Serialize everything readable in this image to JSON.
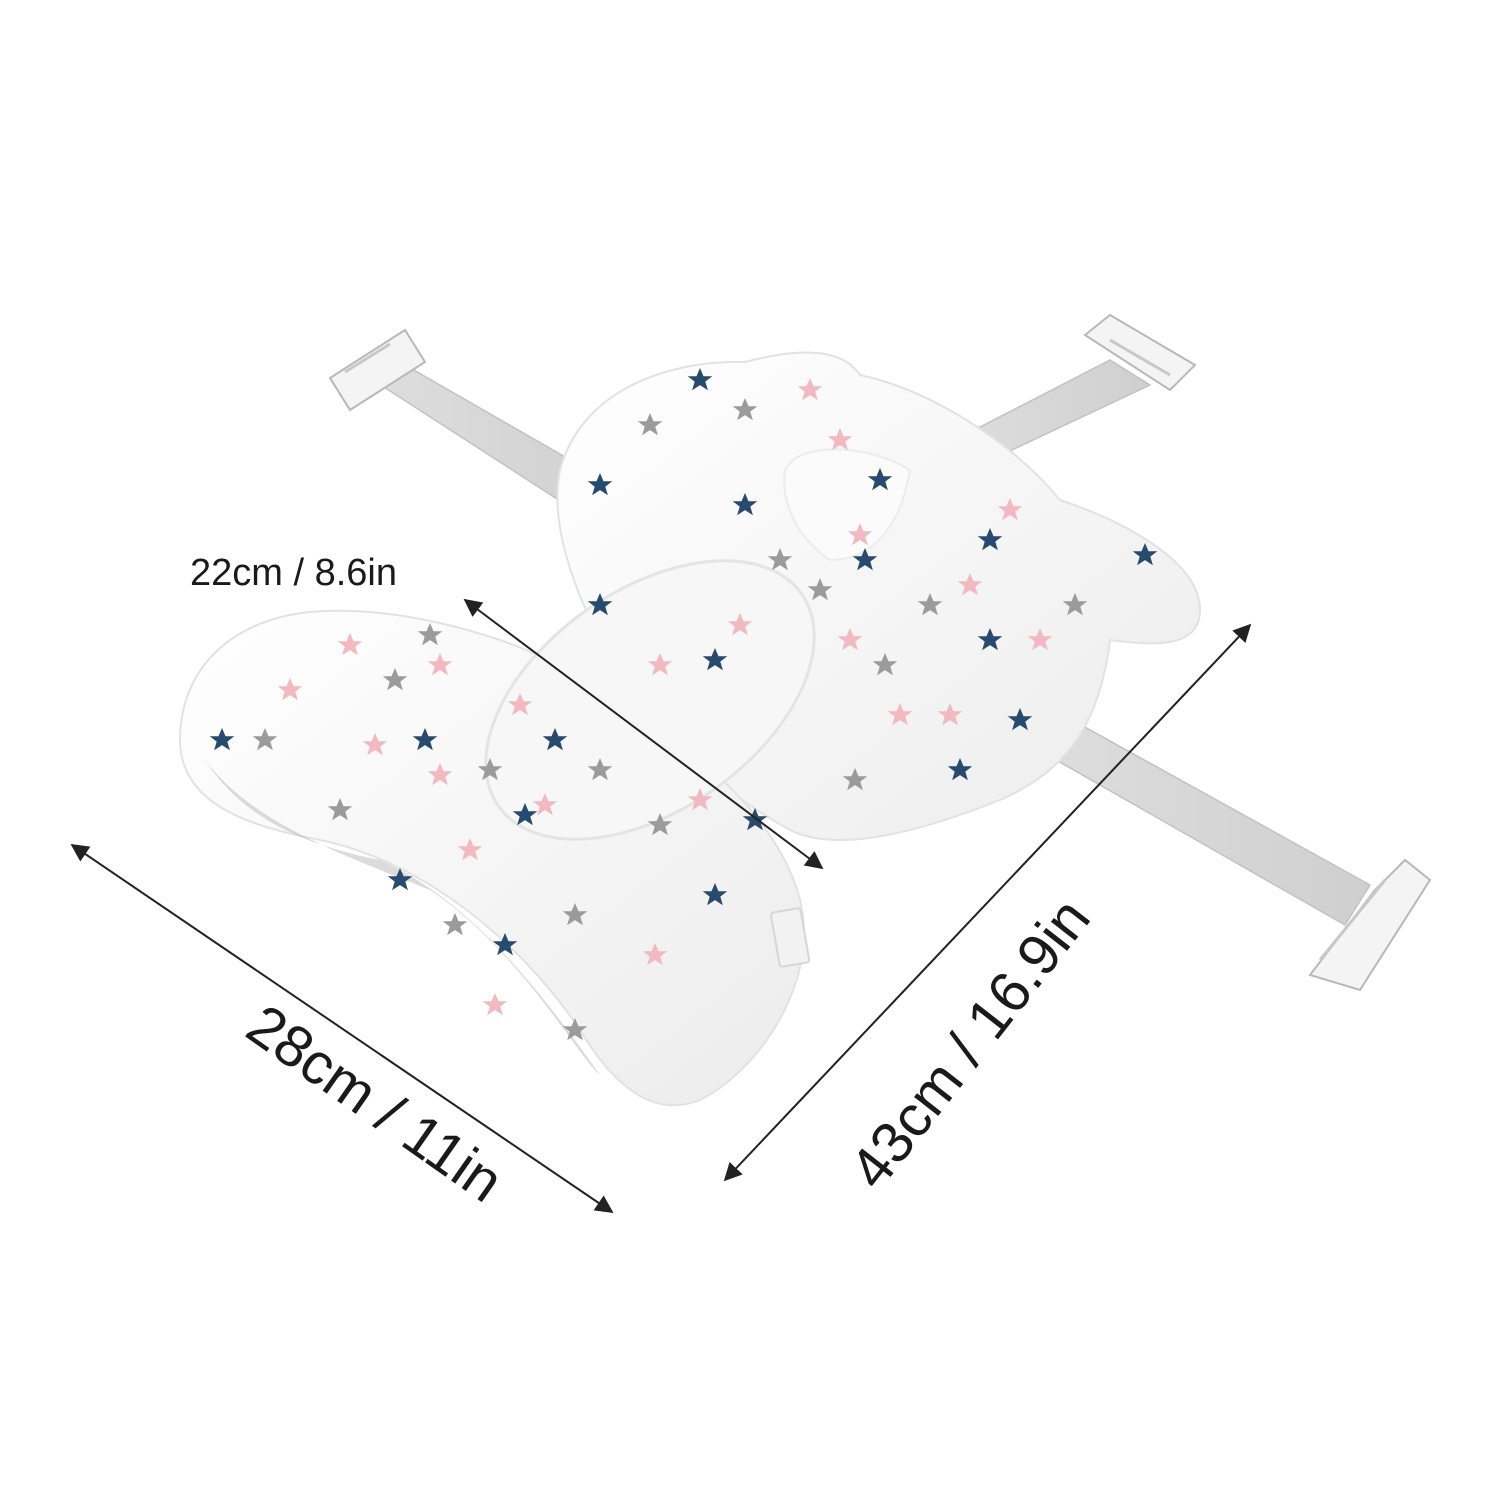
{
  "image": {
    "subject": "baby bath seat support cushion with star print",
    "background_color": "#ffffff",
    "fabric_color": "#fbfbfb",
    "strap_color": "#d6d6d6",
    "clip_color": "#f4f4f4",
    "star_colors": [
      "#274a6e",
      "#9b9b9b",
      "#f2b9c0"
    ]
  },
  "dimensions": {
    "width_label": "22cm / 8.6in",
    "length_label": "43cm / 16.9in",
    "height_label": "28cm / 11in"
  },
  "tag_text": ""
}
